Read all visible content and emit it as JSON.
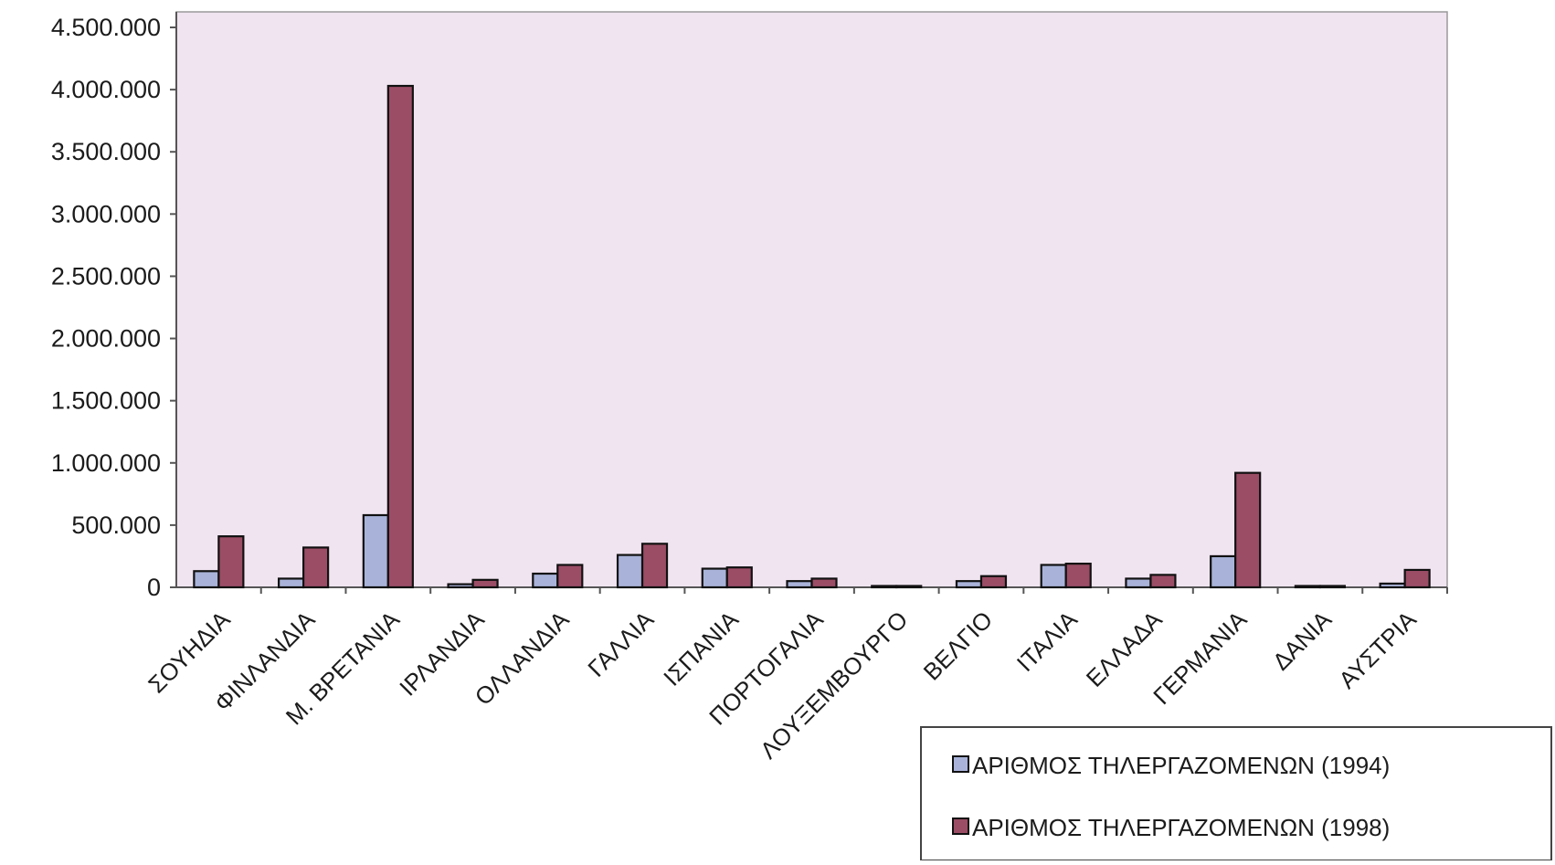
{
  "chart_data": {
    "type": "bar",
    "categories": [
      "ΣΟΥΗΔΙΑ",
      "ΦΙΝΛΑΝΔΙΑ",
      "Μ. ΒΡΕΤΑΝΙΑ",
      "ΙΡΛΑΝΔΙΑ",
      "ΟΛΛΑΝΔΙΑ",
      "ΓΑΛΛΙΑ",
      "ΙΣΠΑΝΙΑ",
      "ΠΟΡΤΟΓΑΛΙΑ",
      "ΛΟΥΞΕΜΒΟΥΡΓΟ",
      "ΒΕΛΓΙΟ",
      "ΙΤΑΛΙΑ",
      "ΕΛΛΑΔΑ",
      "ΓΕΡΜΑΝΙΑ",
      "ΔΑΝΙΑ",
      "ΑΥΣΤΡΙΑ"
    ],
    "series": [
      {
        "name": "ΑΡΙΘΜΟΣ ΤΗΛΕΡΓΑΖΟΜΕΝΩΝ (1994)",
        "color": "#a9b3d9",
        "values": [
          130000,
          70000,
          580000,
          25000,
          110000,
          260000,
          150000,
          50000,
          5000,
          50000,
          180000,
          70000,
          250000,
          10000,
          30000
        ]
      },
      {
        "name": "ΑΡΙΘΜΟΣ ΤΗΛΕΡΓΑΖΟΜΕΝΩΝ (1998)",
        "color": "#9b4d66",
        "values": [
          410000,
          320000,
          4030000,
          60000,
          180000,
          350000,
          160000,
          70000,
          5000,
          90000,
          190000,
          100000,
          920000,
          10000,
          140000
        ]
      }
    ],
    "ylim": [
      0,
      4500000
    ],
    "yticks": [
      "0",
      "500.000",
      "1.000.000",
      "1.500.000",
      "2.000.000",
      "2.500.000",
      "3.000.000",
      "3.500.000",
      "4.000.000",
      "4.500.000"
    ],
    "ytick_values": [
      0,
      500000,
      1000000,
      1500000,
      2000000,
      2500000,
      3000000,
      3500000,
      4000000,
      4500000
    ],
    "legend_position": "bottom-right",
    "plot_background": "#f1e4f1",
    "grid": false
  }
}
